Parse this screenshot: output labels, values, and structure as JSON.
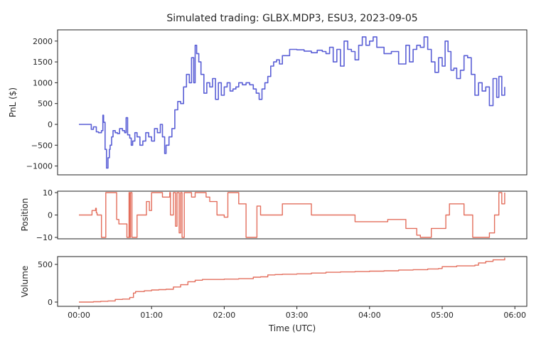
{
  "figure": {
    "title": "Simulated trading: GLBX.MDP3, ESU3, 2023-09-05",
    "xlabel": "Time (UTC)",
    "x_ticks": [
      "00:00",
      "01:00",
      "02:00",
      "03:00",
      "04:00",
      "05:00",
      "06:00"
    ],
    "colors": {
      "pnl": "#5a5fd6",
      "position": "#e36e5c",
      "volume": "#e36e5c",
      "axes": "#222222"
    }
  },
  "chart_data": [
    {
      "type": "line",
      "name": "pnl",
      "title": "Simulated trading: GLBX.MDP3, ESU3, 2023-09-05",
      "xlabel": "Time (UTC)",
      "ylabel": "PnL ($)",
      "y_ticks": [
        2000,
        1500,
        1000,
        500,
        0,
        -500,
        -1000
      ],
      "ylim": [
        -1200,
        2250
      ],
      "xlim": [
        -0.2,
        6.25
      ],
      "x_hours": [
        0,
        0.14,
        0.17,
        0.2,
        0.24,
        0.27,
        0.31,
        0.33,
        0.34,
        0.36,
        0.38,
        0.4,
        0.42,
        0.43,
        0.45,
        0.47,
        0.5,
        0.53,
        0.56,
        0.6,
        0.63,
        0.65,
        0.67,
        0.7,
        0.72,
        0.74,
        0.77,
        0.8,
        0.84,
        0.88,
        0.92,
        0.96,
        1.0,
        1.04,
        1.08,
        1.12,
        1.15,
        1.18,
        1.2,
        1.24,
        1.28,
        1.32,
        1.36,
        1.4,
        1.44,
        1.48,
        1.52,
        1.55,
        1.58,
        1.6,
        1.62,
        1.65,
        1.68,
        1.72,
        1.76,
        1.8,
        1.84,
        1.88,
        1.92,
        1.96,
        2.0,
        2.04,
        2.08,
        2.12,
        2.16,
        2.2,
        2.25,
        2.3,
        2.35,
        2.4,
        2.44,
        2.48,
        2.52,
        2.56,
        2.6,
        2.64,
        2.68,
        2.72,
        2.76,
        2.8,
        2.9,
        3.0,
        3.1,
        3.2,
        3.28,
        3.35,
        3.4,
        3.45,
        3.5,
        3.55,
        3.6,
        3.65,
        3.7,
        3.75,
        3.8,
        3.85,
        3.9,
        3.95,
        4.0,
        4.05,
        4.1,
        4.15,
        4.2,
        4.3,
        4.4,
        4.5,
        4.55,
        4.6,
        4.65,
        4.7,
        4.75,
        4.8,
        4.85,
        4.9,
        4.95,
        5.0,
        5.04,
        5.08,
        5.12,
        5.16,
        5.2,
        5.25,
        5.3,
        5.35,
        5.4,
        5.45,
        5.5,
        5.55,
        5.6,
        5.65,
        5.7,
        5.75,
        5.78,
        5.82,
        5.86
      ],
      "values": [
        0,
        0,
        -120,
        -60,
        -180,
        -200,
        -150,
        220,
        50,
        -600,
        -1050,
        -800,
        -600,
        -500,
        -300,
        -150,
        -200,
        -220,
        -100,
        -150,
        -200,
        160,
        -250,
        -330,
        -500,
        -400,
        -200,
        -300,
        -500,
        -400,
        -200,
        -300,
        -400,
        -100,
        -200,
        0,
        -300,
        -700,
        -500,
        -300,
        -100,
        350,
        550,
        500,
        900,
        1200,
        1000,
        1600,
        1000,
        1900,
        1700,
        1500,
        1200,
        750,
        1000,
        900,
        1100,
        600,
        1000,
        700,
        900,
        1000,
        800,
        850,
        900,
        1000,
        950,
        1000,
        950,
        850,
        750,
        600,
        850,
        1000,
        1150,
        1400,
        1500,
        1550,
        1450,
        1650,
        1800,
        1790,
        1760,
        1720,
        1780,
        1750,
        1700,
        1850,
        1500,
        1800,
        1400,
        2000,
        1800,
        1750,
        1550,
        1900,
        2100,
        1900,
        2000,
        2100,
        1850,
        1850,
        1700,
        1750,
        1450,
        1900,
        1500,
        1800,
        1900,
        1850,
        2100,
        1800,
        1500,
        1250,
        1600,
        1400,
        2000,
        1750,
        1300,
        1350,
        1100,
        1300,
        1650,
        1600,
        1200,
        700,
        1000,
        800,
        900,
        450,
        1100,
        650,
        1150,
        700,
        900,
        600
      ]
    },
    {
      "type": "line",
      "name": "position",
      "ylabel": "Position",
      "y_ticks": [
        10,
        0,
        -10
      ],
      "ylim": [
        -11,
        11
      ],
      "x_hours": [
        0,
        0.14,
        0.18,
        0.2,
        0.23,
        0.24,
        0.25,
        0.3,
        0.31,
        0.34,
        0.37,
        0.38,
        0.47,
        0.52,
        0.55,
        0.6,
        0.66,
        0.67,
        0.69,
        0.7,
        0.71,
        0.73,
        0.79,
        0.8,
        0.9,
        0.93,
        0.94,
        0.97,
        1.0,
        1.01,
        1.1,
        1.15,
        1.25,
        1.26,
        1.3,
        1.33,
        1.35,
        1.38,
        1.4,
        1.42,
        1.45,
        1.5,
        1.55,
        1.6,
        1.75,
        1.8,
        1.9,
        2.0,
        2.05,
        2.12,
        2.2,
        2.25,
        2.3,
        2.4,
        2.45,
        2.48,
        2.5,
        2.52,
        2.6,
        2.7,
        2.8,
        2.9,
        3.05,
        3.15,
        3.2,
        3.35,
        3.4,
        3.6,
        3.65,
        3.8,
        3.85,
        4.0,
        4.25,
        4.5,
        4.65,
        4.7,
        4.85,
        4.9,
        5.0,
        5.05,
        5.1,
        5.2,
        5.3,
        5.35,
        5.42,
        5.45,
        5.6,
        5.65,
        5.7,
        5.72,
        5.75,
        5.78,
        5.8,
        5.82,
        5.86
      ],
      "values": [
        0,
        0,
        2,
        2,
        3,
        1,
        0,
        0,
        -10,
        -10,
        10,
        10,
        10,
        -2,
        -4,
        -4,
        -10,
        -10,
        10,
        -10,
        10,
        -10,
        -10,
        0,
        0,
        6,
        6,
        2,
        10,
        10,
        10,
        8,
        10,
        0,
        10,
        -5,
        10,
        -8,
        10,
        -10,
        10,
        10,
        8,
        10,
        8,
        6,
        0,
        -1,
        10,
        10,
        5,
        5,
        -10,
        -10,
        4,
        4,
        0,
        0,
        0,
        0,
        5,
        5,
        5,
        5,
        0,
        0,
        0,
        0,
        0,
        -3,
        -3,
        -3,
        -2,
        -6,
        -9,
        -10,
        -6,
        -6,
        -6,
        0,
        5,
        5,
        0,
        0,
        -10,
        -10,
        -10,
        -8,
        -8,
        0,
        0,
        10,
        10,
        5,
        10
      ]
    },
    {
      "type": "line",
      "name": "volume",
      "ylabel": "Volume",
      "y_ticks": [
        500,
        0
      ],
      "ylim": [
        -20,
        620
      ],
      "x_hours": [
        0,
        0.1,
        0.2,
        0.3,
        0.4,
        0.5,
        0.6,
        0.7,
        0.75,
        0.78,
        0.8,
        0.9,
        1.0,
        1.1,
        1.2,
        1.3,
        1.4,
        1.5,
        1.6,
        1.7,
        1.8,
        2.0,
        2.2,
        2.4,
        2.5,
        2.6,
        2.7,
        2.8,
        3.0,
        3.2,
        3.4,
        3.6,
        3.8,
        4.0,
        4.2,
        4.4,
        4.6,
        4.8,
        4.95,
        5.0,
        5.1,
        5.2,
        5.3,
        5.45,
        5.5,
        5.6,
        5.7,
        5.86
      ],
      "values": [
        0,
        0,
        5,
        10,
        15,
        35,
        40,
        60,
        120,
        140,
        140,
        150,
        160,
        165,
        170,
        200,
        230,
        270,
        290,
        300,
        300,
        305,
        310,
        330,
        335,
        360,
        365,
        370,
        375,
        385,
        395,
        400,
        405,
        410,
        415,
        425,
        430,
        440,
        445,
        470,
        470,
        480,
        480,
        490,
        520,
        540,
        560,
        590
      ]
    }
  ]
}
